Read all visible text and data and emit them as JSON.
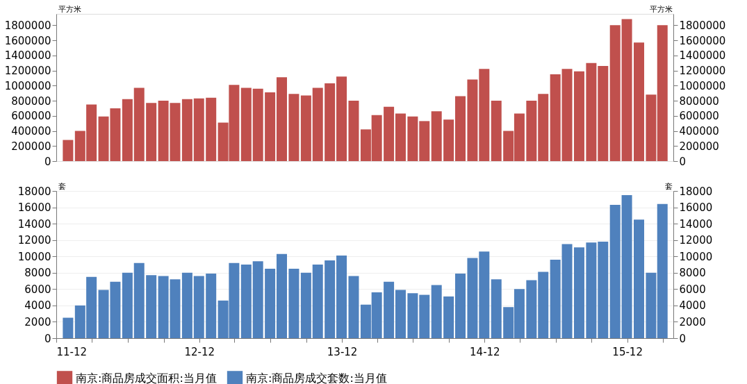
{
  "chart_data": [
    {
      "type": "bar",
      "ylabel": "平方米",
      "y2label": "平方米",
      "tick_labels": "y",
      "legend": "bottom",
      "x": [
        "2011-12-31",
        "2012-01-31",
        "2012-02-29",
        "2012-03-31",
        "2012-04-30",
        "2012-05-31",
        "2012-06-30",
        "2012-07-31",
        "2012-08-31",
        "2012-09-30",
        "2012-10-31",
        "2012-11-30",
        "2012-12-31",
        "2013-01-31",
        "2013-02-28",
        "2013-03-31",
        "2013-04-30",
        "2013-05-31",
        "2013-06-30",
        "2013-07-31",
        "2013-08-31",
        "2013-09-30",
        "2013-10-31",
        "2013-11-30",
        "2013-12-31",
        "2014-01-31",
        "2014-02-28",
        "2014-03-31",
        "2014-04-30",
        "2014-05-31",
        "2014-06-30",
        "2014-07-31",
        "2014-08-31",
        "2014-09-30",
        "2014-10-31",
        "2014-11-30",
        "2014-12-31",
        "2015-01-31",
        "2015-02-28",
        "2015-03-31",
        "2015-04-30",
        "2015-05-31",
        "2015-06-30",
        "2015-07-31",
        "2015-08-31",
        "2015-09-30",
        "2015-10-31",
        "2015-11-30",
        "2015-12-31",
        "2016-01-31",
        "2016-02-29"
      ],
      "xlim": [
        "2011-12-01",
        "2016-03-28"
      ],
      "ylim": [
        0,
        1950000
      ],
      "yticks": [
        0,
        200000,
        400000,
        600000,
        800000,
        1000000,
        1200000,
        1400000,
        1600000,
        1800000
      ],
      "y2lim": [
        0,
        1950000
      ],
      "y2ticks": [
        0,
        200000,
        400000,
        600000,
        800000,
        1000000,
        1200000,
        1400000,
        1600000,
        1800000
      ],
      "series": [
        {
          "name": "南京:商品房成交面积:当月值",
          "color": "#c0504d",
          "values": [
            280000,
            400000,
            750000,
            590000,
            700000,
            820000,
            970000,
            770000,
            800000,
            770000,
            820000,
            830000,
            840000,
            510000,
            1010000,
            970000,
            960000,
            910000,
            1110000,
            890000,
            870000,
            970000,
            1030000,
            1120000,
            800000,
            420000,
            610000,
            720000,
            630000,
            590000,
            530000,
            660000,
            550000,
            860000,
            1080000,
            1220000,
            800000,
            400000,
            630000,
            800000,
            890000,
            1150000,
            1220000,
            1190000,
            1300000,
            1260000,
            1800000,
            1880000,
            1570000,
            880000,
            1800000
          ]
        }
      ]
    },
    {
      "type": "bar",
      "ylabel": "套",
      "y2label": "套",
      "grid": "y",
      "legend": "bottom",
      "x": [
        "2011-12-31",
        "2012-01-31",
        "2012-02-29",
        "2012-03-31",
        "2012-04-30",
        "2012-05-31",
        "2012-06-30",
        "2012-07-31",
        "2012-08-31",
        "2012-09-30",
        "2012-10-31",
        "2012-11-30",
        "2012-12-31",
        "2013-01-31",
        "2013-02-28",
        "2013-03-31",
        "2013-04-30",
        "2013-05-31",
        "2013-06-30",
        "2013-07-31",
        "2013-08-31",
        "2013-09-30",
        "2013-10-31",
        "2013-11-30",
        "2013-12-31",
        "2014-01-31",
        "2014-02-28",
        "2014-03-31",
        "2014-04-30",
        "2014-05-31",
        "2014-06-30",
        "2014-07-31",
        "2014-08-31",
        "2014-09-30",
        "2014-10-31",
        "2014-11-30",
        "2014-12-31",
        "2015-01-31",
        "2015-02-28",
        "2015-03-31",
        "2015-04-30",
        "2015-05-31",
        "2015-06-30",
        "2015-07-31",
        "2015-08-31",
        "2015-09-30",
        "2015-10-31",
        "2015-11-30",
        "2015-12-31",
        "2016-01-31",
        "2016-02-29"
      ],
      "xlim": [
        "2011-12-01",
        "2016-03-28"
      ],
      "xticks": [
        {
          "value": "2011-12-01",
          "label": "11-12"
        },
        {
          "value": "2012-03-01",
          "label": null
        },
        {
          "value": "2012-06-01",
          "label": null
        },
        {
          "value": "2012-09-01",
          "label": null
        },
        {
          "value": "2012-12-01",
          "label": "12-12"
        },
        {
          "value": "2013-03-01",
          "label": null
        },
        {
          "value": "2013-06-01",
          "label": null
        },
        {
          "value": "2013-09-01",
          "label": null
        },
        {
          "value": "2013-12-01",
          "label": "13-12"
        },
        {
          "value": "2014-03-01",
          "label": null
        },
        {
          "value": "2014-06-01",
          "label": null
        },
        {
          "value": "2014-09-01",
          "label": null
        },
        {
          "value": "2014-12-01",
          "label": "14-12"
        },
        {
          "value": "2015-03-01",
          "label": null
        },
        {
          "value": "2015-06-01",
          "label": null
        },
        {
          "value": "2015-09-01",
          "label": null
        },
        {
          "value": "2015-12-01",
          "label": "15-12"
        },
        {
          "value": "2016-03-01",
          "label": null
        }
      ],
      "ylim": [
        0,
        18000
      ],
      "yticks": [
        0,
        2000,
        4000,
        6000,
        8000,
        10000,
        12000,
        14000,
        16000,
        18000
      ],
      "y2lim": [
        0,
        18000
      ],
      "y2ticks": [
        0,
        2000,
        4000,
        6000,
        8000,
        10000,
        12000,
        14000,
        16000,
        18000
      ],
      "series": [
        {
          "name": "南京:商品房成交套数:当月值",
          "color": "#4f81bd",
          "values": [
            2500,
            4000,
            7500,
            5900,
            6900,
            8000,
            9200,
            7700,
            7600,
            7200,
            8000,
            7600,
            7900,
            4600,
            9200,
            9000,
            9400,
            8500,
            10300,
            8500,
            8000,
            9000,
            9500,
            10100,
            7600,
            4100,
            5600,
            6900,
            5900,
            5500,
            5300,
            6500,
            5100,
            7900,
            9800,
            10600,
            7200,
            3800,
            6000,
            7100,
            8100,
            9600,
            11500,
            11100,
            11700,
            11800,
            16300,
            17500,
            14500,
            8000,
            16400
          ]
        }
      ]
    }
  ]
}
